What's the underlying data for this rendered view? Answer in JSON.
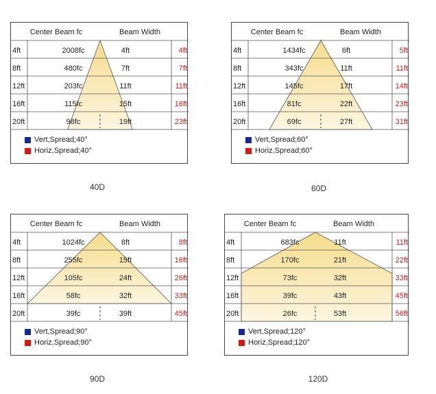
{
  "colors": {
    "beam": "#f5dc8c",
    "beam_light": "#fdf6e0",
    "vert": "#1a2a8c",
    "horiz": "#d01b1b",
    "red_text": "#d01b1b"
  },
  "panels": [
    {
      "id": "40",
      "caption": "40D",
      "header_left": "Center Beam fc",
      "header_right": "Beam Width",
      "rows": [
        {
          "dist": "4ft",
          "fc": "2008fc",
          "width": "4ft",
          "horiz": "4ft"
        },
        {
          "dist": "8ft",
          "fc": "480fc",
          "width": "7ft",
          "horiz": "7ft"
        },
        {
          "dist": "12ft",
          "fc": "203fc",
          "width": "11ft",
          "horiz": "11ft"
        },
        {
          "dist": "16ft",
          "fc": "115fc",
          "width": "15ft",
          "horiz": "16ft"
        },
        {
          "dist": "20ft",
          "fc": "98fc",
          "width": "19ft",
          "horiz": "23ft"
        }
      ],
      "legend_vert": "Vert,Spread;40°",
      "legend_horiz": "Horiz,Spread;40°",
      "spread_deg": 40
    },
    {
      "id": "60",
      "caption": "60D",
      "header_left": "Center Beam fc",
      "header_right": "Beam Width",
      "rows": [
        {
          "dist": "4ft",
          "fc": "1434fc",
          "width": "6ft",
          "horiz": "5ft"
        },
        {
          "dist": "8ft",
          "fc": "343fc",
          "width": "11ft",
          "horiz": "11ft"
        },
        {
          "dist": "12ft",
          "fc": "145fc",
          "width": "17ft",
          "horiz": "14ft"
        },
        {
          "dist": "16ft",
          "fc": "81fc",
          "width": "22ft",
          "horiz": "23ft"
        },
        {
          "dist": "20ft",
          "fc": "69fc",
          "width": "27ft",
          "horiz": "31ft"
        }
      ],
      "legend_vert": "Vert,Spread;60°",
      "legend_horiz": "Horiz,Spread;60°",
      "spread_deg": 60
    },
    {
      "id": "90",
      "caption": "90D",
      "header_left": "Center Beam fc",
      "header_right": "Beam Width",
      "rows": [
        {
          "dist": "4ft",
          "fc": "1024fc",
          "width": "8ft",
          "horiz": "8ft"
        },
        {
          "dist": "8ft",
          "fc": "255fc",
          "width": "15ft",
          "horiz": "16ft"
        },
        {
          "dist": "12ft",
          "fc": "105fc",
          "width": "24ft",
          "horiz": "26ft"
        },
        {
          "dist": "16ft",
          "fc": "58fc",
          "width": "32ft",
          "horiz": "33ft"
        },
        {
          "dist": "20ft",
          "fc": "39fc",
          "width": "39ft",
          "horiz": "45ft"
        }
      ],
      "legend_vert": "Vert,Spread;90°",
      "legend_horiz": "Horiz,Spread;90°",
      "spread_deg": 90
    },
    {
      "id": "120",
      "caption": "120D",
      "header_left": "Center Beam fc",
      "header_right": "Beam Width",
      "rows": [
        {
          "dist": "4ft",
          "fc": "683fc",
          "width": "11ft",
          "horiz": "11ft"
        },
        {
          "dist": "8ft",
          "fc": "170fc",
          "width": "21ft",
          "horiz": "22ft"
        },
        {
          "dist": "12ft",
          "fc": "73fc",
          "width": "32ft",
          "horiz": "33ft"
        },
        {
          "dist": "16ft",
          "fc": "39fc",
          "width": "43ft",
          "horiz": "45ft"
        },
        {
          "dist": "20ft",
          "fc": "26fc",
          "width": "53ft",
          "horiz": "56ft"
        }
      ],
      "legend_vert": "Vert,Spread;120°",
      "legend_horiz": "Horiz,Spread;120°",
      "spread_deg": 120
    }
  ]
}
